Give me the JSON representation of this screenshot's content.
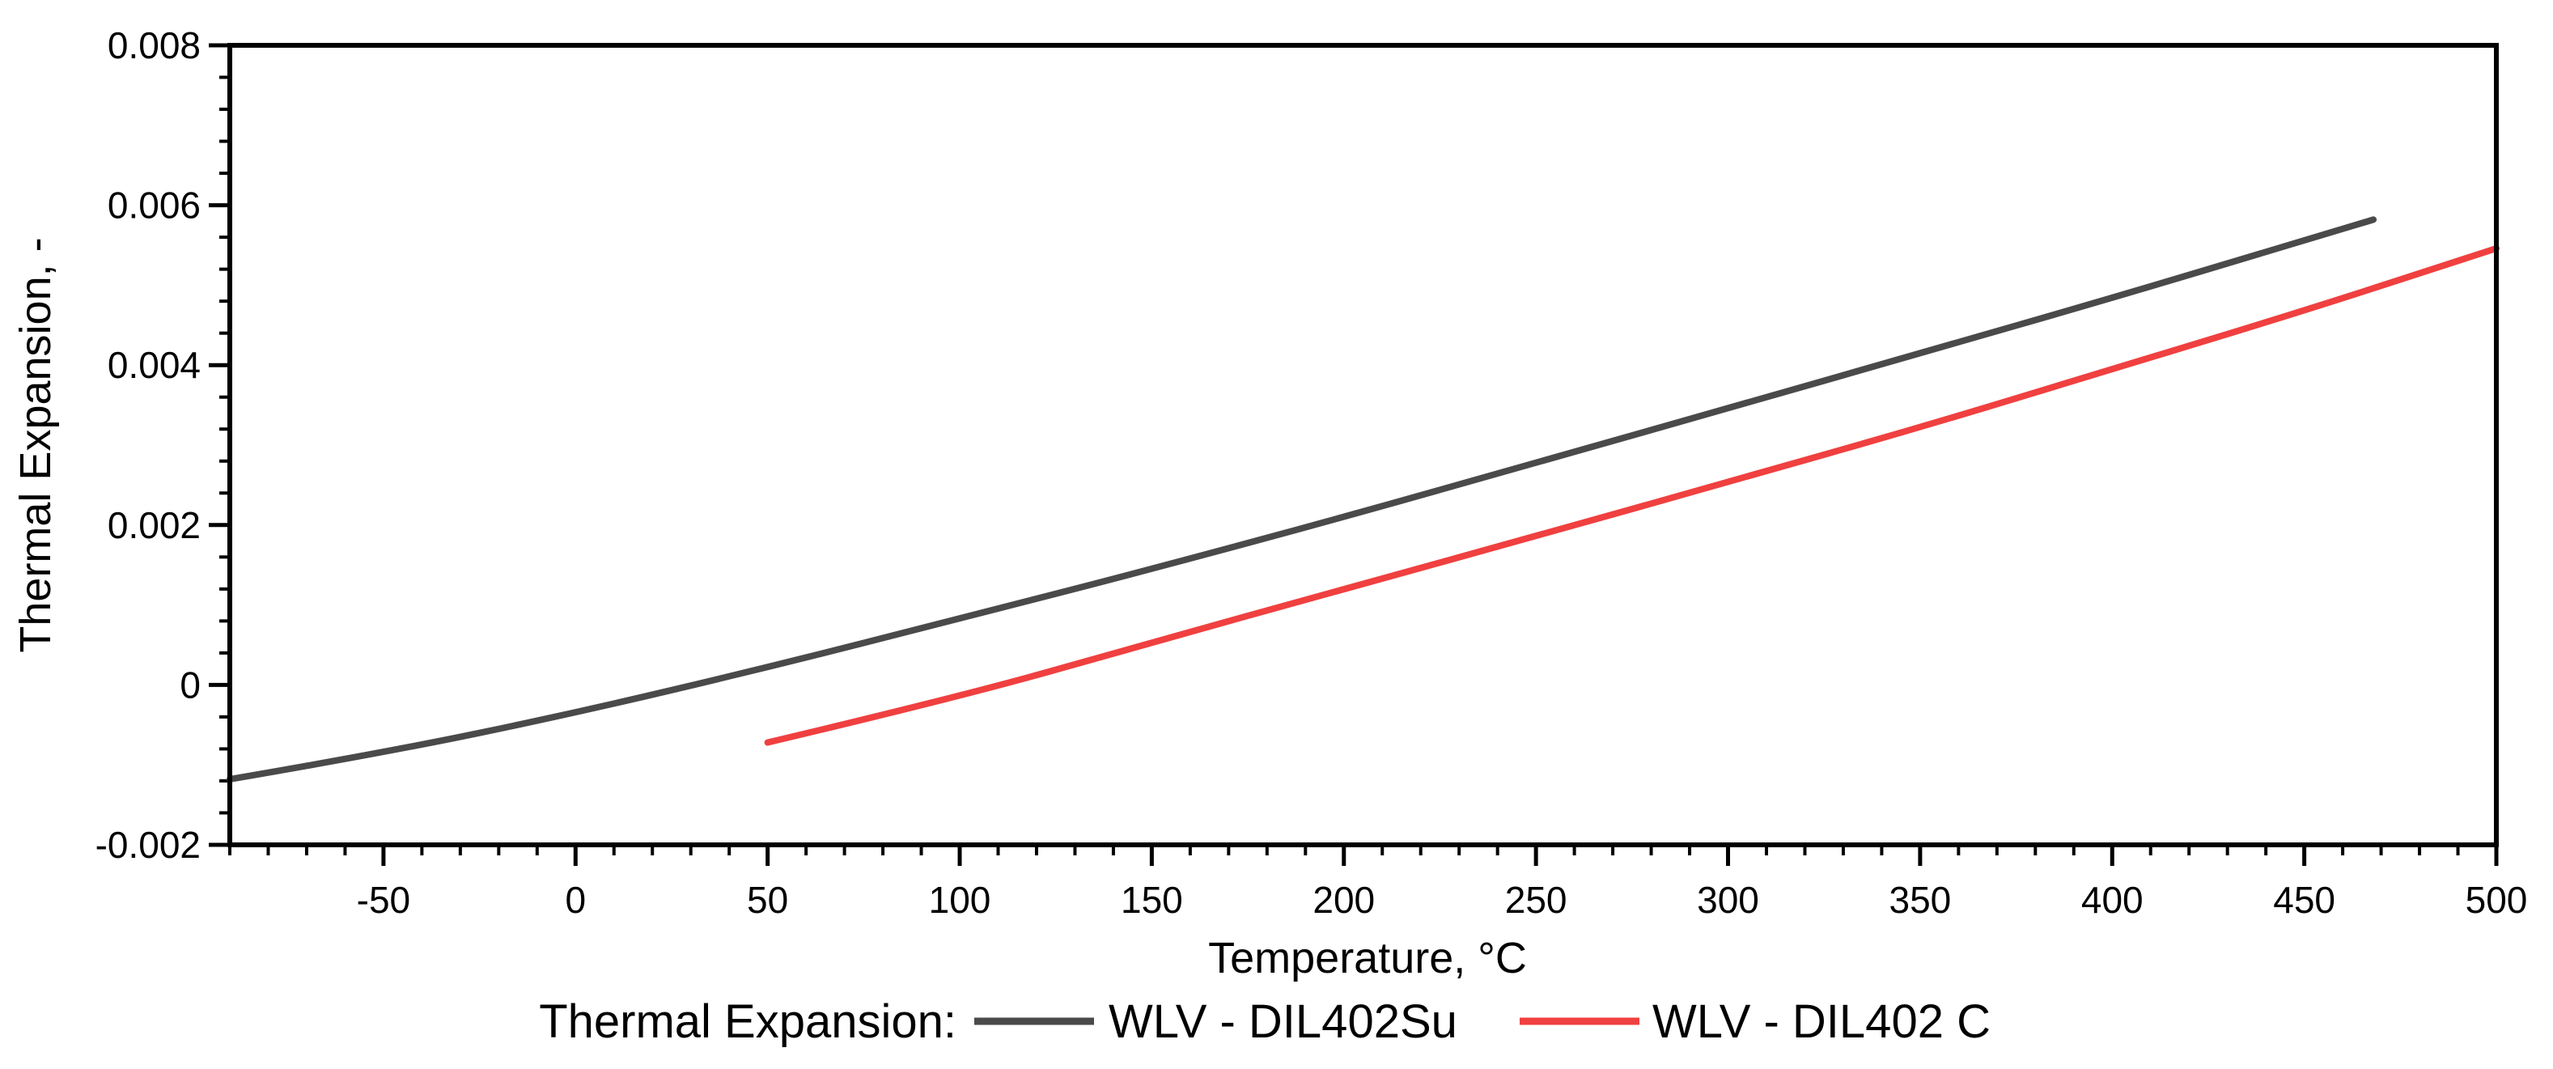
{
  "chart_data": {
    "type": "line",
    "title": "",
    "xlabel": "Temperature, °C",
    "ylabel": "Thermal Expansion, -",
    "xlim": [
      -90,
      500
    ],
    "ylim": [
      -0.002,
      0.008
    ],
    "x_ticks": [
      -50,
      0,
      50,
      100,
      150,
      200,
      250,
      300,
      350,
      400,
      450,
      500
    ],
    "x_tick_labels": [
      "-50",
      "0",
      "50",
      "100",
      "150",
      "200",
      "250",
      "300",
      "350",
      "400",
      "450",
      "500"
    ],
    "x_minor_step": 10,
    "y_ticks": [
      -0.002,
      0,
      0.002,
      0.004,
      0.006,
      0.008
    ],
    "y_tick_labels": [
      "-0.002",
      "0",
      "0.002",
      "0.004",
      "0.006",
      "0.008"
    ],
    "y_minor_step": 0.0004,
    "grid": false,
    "legend": {
      "title": "Thermal Expansion:",
      "position": "bottom-center"
    },
    "series": [
      {
        "name": "WLV - DIL402Su",
        "color": "#4a4a4a",
        "x": [
          -90,
          -50,
          0,
          50,
          100,
          150,
          200,
          250,
          300,
          350,
          400,
          450,
          468
        ],
        "y": [
          -0.00118,
          -0.00085,
          -0.00035,
          0.00022,
          0.00083,
          0.00145,
          0.0021,
          0.00278,
          0.00346,
          0.00415,
          0.00484,
          0.00556,
          0.00582
        ]
      },
      {
        "name": "WLV - DIL402 C",
        "color": "#f04040",
        "x": [
          50,
          100,
          150,
          200,
          250,
          300,
          350,
          400,
          450,
          500
        ],
        "y": [
          -0.00072,
          -0.00015,
          0.00053,
          0.0012,
          0.00186,
          0.00254,
          0.00322,
          0.00395,
          0.00468,
          0.00546
        ]
      }
    ]
  }
}
